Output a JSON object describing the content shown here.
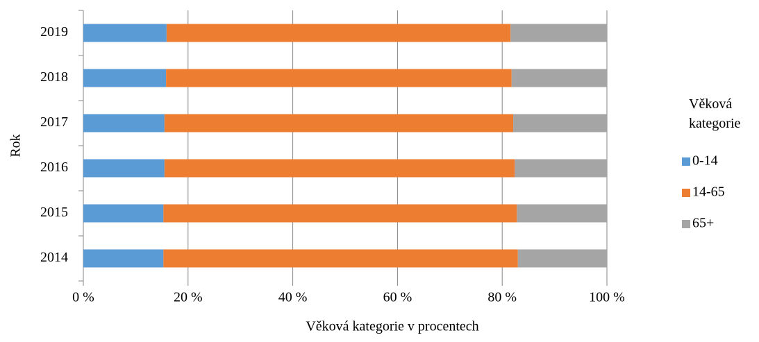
{
  "chart_data": {
    "type": "stacked-barh",
    "x_label": "Věková kategorie v procentech",
    "y_label": "Rok",
    "legend_title": "Věková kategorie",
    "legend_position": "right",
    "categories": [
      "2014",
      "2015",
      "2016",
      "2017",
      "2018",
      "2019"
    ],
    "series": [
      {
        "name": "0-14",
        "color": "#5b9bd5",
        "values": [
          15.3,
          15.3,
          15.5,
          15.5,
          15.8,
          15.9
        ]
      },
      {
        "name": "14-65",
        "color": "#ed7d31",
        "values": [
          67.7,
          67.5,
          66.9,
          66.6,
          66.0,
          65.7
        ]
      },
      {
        "name": "65+",
        "color": "#a5a5a5",
        "values": [
          17.0,
          17.2,
          17.6,
          17.9,
          18.2,
          18.4
        ]
      }
    ],
    "xlim": [
      0,
      100
    ],
    "xticks": [
      {
        "value": 0,
        "label": "0 %"
      },
      {
        "value": 20,
        "label": "20 %"
      },
      {
        "value": 40,
        "label": "40 %"
      },
      {
        "value": 60,
        "label": "60 %"
      },
      {
        "value": 80,
        "label": "80 %"
      },
      {
        "value": 100,
        "label": "100 %"
      }
    ],
    "grid": true
  }
}
